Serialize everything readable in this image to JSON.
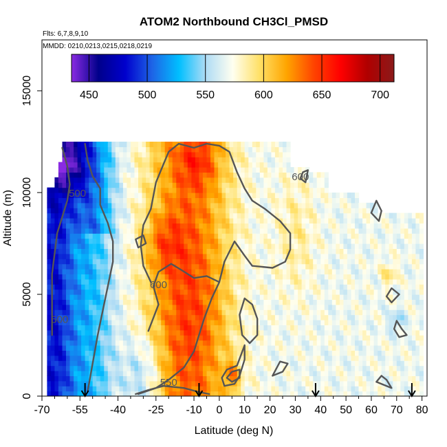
{
  "chart_data": {
    "type": "heatmap",
    "title": "ATOM2 Northbound CH3Cl_PMSD",
    "flights_note": "Flts: 6,7,8,9,10",
    "dates_note": "MMDD: 0210,0213,0215,0218,0219",
    "xlabel": "Latitude (deg N)",
    "ylabel": "Altitude (m)",
    "xlim": [
      -70,
      82
    ],
    "ylim": [
      0,
      17500
    ],
    "x_ticks": [
      -70,
      -55,
      -40,
      -25,
      -10,
      0,
      10,
      20,
      30,
      40,
      50,
      60,
      70,
      80
    ],
    "y_ticks": [
      0,
      5000,
      10000,
      15000
    ],
    "colorbar": {
      "min": 435,
      "max": 712,
      "ticks": [
        450,
        500,
        550,
        600,
        650,
        700
      ],
      "colors": [
        "#8a2be2",
        "#00008b",
        "#0000cd",
        "#1e64e6",
        "#00bfff",
        "#b0dcf5",
        "#fffff0",
        "#ffe066",
        "#ffa500",
        "#ff4500",
        "#ff0000",
        "#b00000",
        "#8b1a1a"
      ]
    },
    "contour_labels": [
      {
        "text": "500",
        "x": -56,
        "y": 9800
      },
      {
        "text": "600",
        "x": 32,
        "y": 10600
      },
      {
        "text": "600",
        "x": -24,
        "y": 5300
      },
      {
        "text": "500",
        "x": -63,
        "y": 3600
      },
      {
        "text": "550",
        "x": -20,
        "y": 500
      }
    ],
    "flight_markers_lat": [
      -53,
      -8,
      38,
      76
    ],
    "field_description": "Low values (~480-520) in the southern latitudes (-70 to -50); high values (620-700) in the tropics around -30 to 10 deg N especially below 12000 m with a peak near 5 deg N at 1000 m; moderate values (~560-590) north of 20 deg N."
  }
}
